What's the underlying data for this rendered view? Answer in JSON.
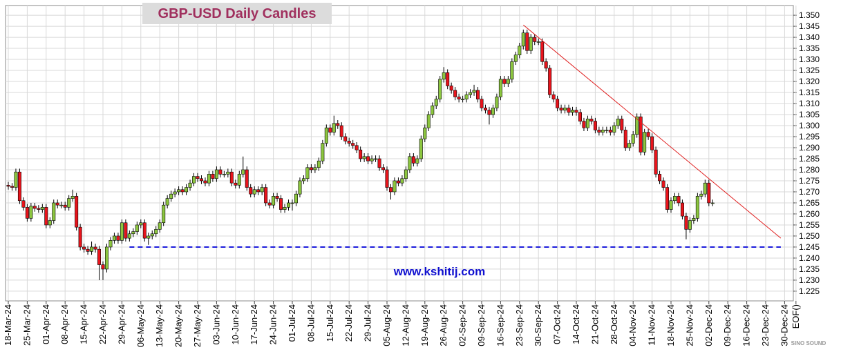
{
  "chart_data": {
    "type": "candlestick",
    "title": "GBP-USD Daily Candles",
    "annotation": "www.kshitij.com",
    "watermark": "SINO SOUND",
    "up_color": "#8cc63f",
    "down_color": "#e8141c",
    "grid": true,
    "ylim": [
      1.2206,
      1.3544
    ],
    "yticks": [
      1.225,
      {
        "value": 1.23,
        "label": "1.230"
      },
      1.235,
      {
        "value": 1.24,
        "label": "1.240"
      },
      1.245,
      {
        "value": 1.25,
        "label": "1.250"
      },
      1.255,
      {
        "value": 1.26,
        "label": "1.260"
      },
      1.265,
      {
        "value": 1.27,
        "label": "1.270"
      },
      1.275,
      {
        "value": 1.28,
        "label": "1.280"
      },
      1.285,
      {
        "value": 1.29,
        "label": "1.290"
      },
      1.295,
      {
        "value": 1.3,
        "label": "1.300"
      },
      1.305,
      {
        "value": 1.31,
        "label": "1.310"
      },
      1.315,
      {
        "value": 1.32,
        "label": "1.320"
      },
      1.325,
      {
        "value": 1.33,
        "label": "1.330"
      },
      1.335,
      {
        "value": 1.34,
        "label": "1.340"
      },
      1.345,
      {
        "value": 1.35,
        "label": "1.350"
      }
    ],
    "categories": [
      "18-Mar-24",
      null,
      null,
      null,
      null,
      "25-Mar-24",
      null,
      null,
      null,
      null,
      "01-Apr-24",
      null,
      null,
      null,
      null,
      "08-Apr-24",
      null,
      null,
      null,
      null,
      "15-Apr-24",
      null,
      null,
      null,
      null,
      "22-Apr-24",
      null,
      null,
      null,
      null,
      "29-Apr-24",
      null,
      null,
      null,
      null,
      "06-May-24",
      null,
      null,
      null,
      null,
      "13-May-24",
      null,
      null,
      null,
      null,
      "20-May-24",
      null,
      null,
      null,
      null,
      "27-May-24",
      null,
      null,
      null,
      null,
      "03-Jun-24",
      null,
      null,
      null,
      null,
      "10-Jun-24",
      null,
      null,
      null,
      null,
      "17-Jun-24",
      null,
      null,
      null,
      null,
      "24-Jun-24",
      null,
      null,
      null,
      null,
      "01-Jul-24",
      null,
      null,
      null,
      null,
      "08-Jul-24",
      null,
      null,
      null,
      null,
      "15-Jul-24",
      null,
      null,
      null,
      null,
      "22-Jul-24",
      null,
      null,
      null,
      null,
      "29-Jul-24",
      null,
      null,
      null,
      null,
      "05-Aug-24",
      null,
      null,
      null,
      null,
      "12-Aug-24",
      null,
      null,
      null,
      null,
      "19-Aug-24",
      null,
      null,
      null,
      null,
      "26-Aug-24",
      null,
      null,
      null,
      null,
      "02-Sep-24",
      null,
      null,
      null,
      null,
      "09-Sep-24",
      null,
      null,
      null,
      null,
      "16-Sep-24",
      null,
      null,
      null,
      null,
      "23-Sep-24",
      null,
      null,
      null,
      null,
      "30-Sep-24",
      null,
      null,
      null,
      null,
      "07-Oct-24",
      null,
      null,
      null,
      null,
      "14-Oct-24",
      null,
      null,
      null,
      null,
      "21-Oct-24",
      null,
      null,
      null,
      null,
      "28-Oct-24",
      null,
      null,
      null,
      null,
      "04-Nov-24",
      null,
      null,
      null,
      null,
      "11-Nov-24",
      null,
      null,
      null,
      null,
      "18-Nov-24",
      null,
      null,
      null,
      null,
      "25-Nov-24",
      null,
      null,
      null,
      null,
      "02-Dec-24",
      null,
      null,
      null,
      null,
      "09-Dec-24",
      null,
      null,
      null,
      null,
      "16-Dec-24",
      null,
      null,
      null,
      null,
      "23-Dec-24",
      null,
      null,
      null,
      null,
      "30-Dec-24",
      null,
      null,
      "EOF()",
      null
    ],
    "candles": [
      [
        1.273,
        1.2745,
        1.271,
        1.2725
      ],
      [
        1.2725,
        1.274,
        1.2705,
        1.272
      ],
      [
        1.272,
        1.2805,
        1.2705,
        1.279
      ],
      [
        1.279,
        1.2805,
        1.2645,
        1.266
      ],
      [
        1.266,
        1.2675,
        1.2615,
        1.263
      ],
      [
        1.263,
        1.2645,
        1.2565,
        1.258
      ],
      [
        1.258,
        1.265,
        1.2565,
        1.2635
      ],
      [
        1.2635,
        1.265,
        1.261,
        1.2625
      ],
      [
        1.2625,
        1.264,
        1.2605,
        1.262
      ],
      [
        1.262,
        1.2645,
        1.2605,
        1.263
      ],
      [
        1.263,
        1.2645,
        1.2535,
        1.255
      ],
      [
        1.255,
        1.2585,
        1.2535,
        1.257
      ],
      [
        1.257,
        1.2665,
        1.2555,
        1.265
      ],
      [
        1.265,
        1.2665,
        1.2625,
        1.264
      ],
      [
        1.264,
        1.2655,
        1.2625,
        1.264
      ],
      [
        1.264,
        1.2655,
        1.2615,
        1.263
      ],
      [
        1.263,
        1.2685,
        1.2615,
        1.267
      ],
      [
        1.267,
        1.271,
        1.2655,
        1.268
      ],
      [
        1.268,
        1.2695,
        1.2525,
        1.254
      ],
      [
        1.254,
        1.2555,
        1.2435,
        1.245
      ],
      [
        1.245,
        1.2465,
        1.2425,
        1.244
      ],
      [
        1.244,
        1.2455,
        1.2415,
        1.243
      ],
      [
        1.243,
        1.2475,
        1.2415,
        1.245
      ],
      [
        1.245,
        1.2465,
        1.2425,
        1.244
      ],
      [
        1.244,
        1.2455,
        1.23,
        1.237
      ],
      [
        1.237,
        1.2385,
        1.23,
        1.235
      ],
      [
        1.235,
        1.2465,
        1.2335,
        1.245
      ],
      [
        1.245,
        1.2495,
        1.2435,
        1.248
      ],
      [
        1.248,
        1.2515,
        1.2465,
        1.25
      ],
      [
        1.25,
        1.2515,
        1.2465,
        1.248
      ],
      [
        1.248,
        1.2575,
        1.2465,
        1.256
      ],
      [
        1.256,
        1.2575,
        1.2475,
        1.249
      ],
      [
        1.249,
        1.2525,
        1.2475,
        1.251
      ],
      [
        1.251,
        1.2535,
        1.2495,
        1.252
      ],
      [
        1.252,
        1.2565,
        1.2505,
        1.255
      ],
      [
        1.255,
        1.2575,
        1.2535,
        1.256
      ],
      [
        1.256,
        1.2575,
        1.2475,
        1.249
      ],
      [
        1.249,
        1.2515,
        1.246,
        1.25
      ],
      [
        1.25,
        1.2525,
        1.2485,
        1.251
      ],
      [
        1.251,
        1.2545,
        1.2495,
        1.253
      ],
      [
        1.253,
        1.2575,
        1.2515,
        1.256
      ],
      [
        1.256,
        1.2655,
        1.2545,
        1.264
      ],
      [
        1.264,
        1.2685,
        1.2625,
        1.267
      ],
      [
        1.267,
        1.2705,
        1.2655,
        1.269
      ],
      [
        1.269,
        1.2715,
        1.2675,
        1.27
      ],
      [
        1.27,
        1.2725,
        1.2685,
        1.271
      ],
      [
        1.271,
        1.2725,
        1.2685,
        1.27
      ],
      [
        1.27,
        1.2735,
        1.2685,
        1.272
      ],
      [
        1.272,
        1.2755,
        1.2705,
        1.274
      ],
      [
        1.274,
        1.2785,
        1.2725,
        1.277
      ],
      [
        1.277,
        1.2785,
        1.2745,
        1.276
      ],
      [
        1.276,
        1.2775,
        1.2735,
        1.275
      ],
      [
        1.275,
        1.2765,
        1.2725,
        1.274
      ],
      [
        1.274,
        1.2795,
        1.2725,
        1.278
      ],
      [
        1.278,
        1.2795,
        1.2745,
        1.276
      ],
      [
        1.276,
        1.2815,
        1.2745,
        1.28
      ],
      [
        1.28,
        1.2815,
        1.2765,
        1.278
      ],
      [
        1.278,
        1.2795,
        1.2765,
        1.278
      ],
      [
        1.278,
        1.2805,
        1.2765,
        1.279
      ],
      [
        1.279,
        1.2805,
        1.2725,
        1.274
      ],
      [
        1.274,
        1.2755,
        1.2715,
        1.273
      ],
      [
        1.273,
        1.2795,
        1.2715,
        1.278
      ],
      [
        1.278,
        1.286,
        1.2765,
        1.28
      ],
      [
        1.28,
        1.2815,
        1.2705,
        1.272
      ],
      [
        1.272,
        1.2735,
        1.2675,
        1.269
      ],
      [
        1.269,
        1.2725,
        1.2675,
        1.271
      ],
      [
        1.271,
        1.2725,
        1.2685,
        1.27
      ],
      [
        1.27,
        1.2735,
        1.2685,
        1.272
      ],
      [
        1.272,
        1.2735,
        1.2635,
        1.265
      ],
      [
        1.265,
        1.2665,
        1.2625,
        1.264
      ],
      [
        1.264,
        1.2695,
        1.2625,
        1.268
      ],
      [
        1.268,
        1.2695,
        1.2655,
        1.267
      ],
      [
        1.267,
        1.2685,
        1.2605,
        1.262
      ],
      [
        1.262,
        1.2645,
        1.2605,
        1.263
      ],
      [
        1.263,
        1.2665,
        1.2615,
        1.265
      ],
      [
        1.265,
        1.2665,
        1.2615,
        1.265
      ],
      [
        1.265,
        1.2705,
        1.2635,
        1.269
      ],
      [
        1.269,
        1.2765,
        1.2675,
        1.275
      ],
      [
        1.275,
        1.2775,
        1.2735,
        1.276
      ],
      [
        1.276,
        1.2825,
        1.2745,
        1.281
      ],
      [
        1.281,
        1.2825,
        1.2785,
        1.28
      ],
      [
        1.28,
        1.2825,
        1.2785,
        1.281
      ],
      [
        1.281,
        1.2855,
        1.2795,
        1.284
      ],
      [
        1.284,
        1.2935,
        1.2825,
        1.292
      ],
      [
        1.292,
        1.3005,
        1.2905,
        1.299
      ],
      [
        1.299,
        1.3005,
        1.2955,
        1.297
      ],
      [
        1.297,
        1.3045,
        1.2955,
        1.301
      ],
      [
        1.301,
        1.3025,
        1.2985,
        1.3
      ],
      [
        1.3,
        1.3015,
        1.2935,
        1.295
      ],
      [
        1.295,
        1.2965,
        1.2915,
        1.293
      ],
      [
        1.293,
        1.2945,
        1.2905,
        1.292
      ],
      [
        1.292,
        1.2935,
        1.2895,
        1.291
      ],
      [
        1.291,
        1.2925,
        1.2875,
        1.289
      ],
      [
        1.289,
        1.2905,
        1.2835,
        1.285
      ],
      [
        1.285,
        1.2875,
        1.2835,
        1.286
      ],
      [
        1.286,
        1.2875,
        1.2825,
        1.284
      ],
      [
        1.284,
        1.2865,
        1.2825,
        1.285
      ],
      [
        1.285,
        1.2865,
        1.2835,
        1.285
      ],
      [
        1.285,
        1.2865,
        1.2795,
        1.281
      ],
      [
        1.281,
        1.2825,
        1.2785,
        1.28
      ],
      [
        1.28,
        1.2815,
        1.2705,
        1.272
      ],
      [
        1.272,
        1.2735,
        1.2665,
        1.27
      ],
      [
        1.27,
        1.2765,
        1.2685,
        1.275
      ],
      [
        1.275,
        1.2765,
        1.2725,
        1.274
      ],
      [
        1.274,
        1.2775,
        1.2725,
        1.276
      ],
      [
        1.276,
        1.2815,
        1.2745,
        1.28
      ],
      [
        1.28,
        1.2875,
        1.2785,
        1.286
      ],
      [
        1.286,
        1.2875,
        1.2815,
        1.283
      ],
      [
        1.283,
        1.2865,
        1.2815,
        1.285
      ],
      [
        1.285,
        1.2955,
        1.2835,
        1.294
      ],
      [
        1.294,
        1.3005,
        1.2925,
        1.299
      ],
      [
        1.299,
        1.3065,
        1.2975,
        1.305
      ],
      [
        1.305,
        1.3105,
        1.3035,
        1.309
      ],
      [
        1.309,
        1.3135,
        1.3075,
        1.312
      ],
      [
        1.312,
        1.3225,
        1.3105,
        1.321
      ],
      [
        1.321,
        1.3265,
        1.3195,
        1.324
      ],
      [
        1.324,
        1.3255,
        1.3165,
        1.318
      ],
      [
        1.318,
        1.3195,
        1.3145,
        1.316
      ],
      [
        1.316,
        1.3175,
        1.3115,
        1.313
      ],
      [
        1.313,
        1.3145,
        1.3105,
        1.312
      ],
      [
        1.312,
        1.3135,
        1.3105,
        1.312
      ],
      [
        1.312,
        1.3155,
        1.3105,
        1.314
      ],
      [
        1.314,
        1.3165,
        1.3125,
        1.315
      ],
      [
        1.315,
        1.3185,
        1.3135,
        1.316
      ],
      [
        1.316,
        1.3175,
        1.3105,
        1.312
      ],
      [
        1.312,
        1.3135,
        1.3065,
        1.308
      ],
      [
        1.308,
        1.3095,
        1.3055,
        1.307
      ],
      [
        1.307,
        1.3085,
        1.3005,
        1.305
      ],
      [
        1.305,
        1.3095,
        1.3035,
        1.308
      ],
      [
        1.308,
        1.3145,
        1.3065,
        1.313
      ],
      [
        1.313,
        1.3225,
        1.3115,
        1.321
      ],
      [
        1.321,
        1.3225,
        1.3175,
        1.319
      ],
      [
        1.319,
        1.3225,
        1.3175,
        1.321
      ],
      [
        1.321,
        1.3305,
        1.3195,
        1.329
      ],
      [
        1.329,
        1.3335,
        1.3275,
        1.332
      ],
      [
        1.332,
        1.3375,
        1.3305,
        1.336
      ],
      [
        1.336,
        1.3435,
        1.3345,
        1.342
      ],
      [
        1.342,
        1.3435,
        1.3325,
        1.334
      ],
      [
        1.334,
        1.3415,
        1.3325,
        1.34
      ],
      [
        1.34,
        1.3415,
        1.3365,
        1.338
      ],
      [
        1.338,
        1.3395,
        1.3365,
        1.338
      ],
      [
        1.338,
        1.3395,
        1.3275,
        1.329
      ],
      [
        1.329,
        1.3305,
        1.3245,
        1.326
      ],
      [
        1.326,
        1.3275,
        1.3125,
        1.314
      ],
      [
        1.314,
        1.3155,
        1.3105,
        1.312
      ],
      [
        1.312,
        1.3135,
        1.3065,
        1.308
      ],
      [
        1.308,
        1.3095,
        1.3055,
        1.307
      ],
      [
        1.307,
        1.3095,
        1.3055,
        1.308
      ],
      [
        1.308,
        1.3095,
        1.3045,
        1.306
      ],
      [
        1.306,
        1.3085,
        1.3045,
        1.307
      ],
      [
        1.307,
        1.3085,
        1.3045,
        1.306
      ],
      [
        1.306,
        1.3075,
        1.3005,
        1.302
      ],
      [
        1.302,
        1.3035,
        1.2975,
        1.299
      ],
      [
        1.299,
        1.3045,
        1.2975,
        1.303
      ],
      [
        1.303,
        1.3045,
        1.3005,
        1.302
      ],
      [
        1.302,
        1.3035,
        1.2965,
        1.298
      ],
      [
        1.298,
        1.2995,
        1.2955,
        1.297
      ],
      [
        1.297,
        1.2995,
        1.2955,
        1.298
      ],
      [
        1.298,
        1.2995,
        1.2965,
        1.298
      ],
      [
        1.298,
        1.2995,
        1.2955,
        1.297
      ],
      [
        1.297,
        1.3015,
        1.2955,
        1.3
      ],
      [
        1.3,
        1.3045,
        1.2985,
        1.303
      ],
      [
        1.303,
        1.3045,
        1.2965,
        1.298
      ],
      [
        1.298,
        1.2995,
        1.2885,
        1.29
      ],
      [
        1.29,
        1.2935,
        1.2885,
        1.292
      ],
      [
        1.292,
        1.2975,
        1.2905,
        1.296
      ],
      [
        1.296,
        1.3055,
        1.2945,
        1.304
      ],
      [
        1.304,
        1.3055,
        1.2865,
        1.288
      ],
      [
        1.288,
        1.2985,
        1.2865,
        1.297
      ],
      [
        1.297,
        1.2985,
        1.2935,
        1.295
      ],
      [
        1.295,
        1.2965,
        1.2875,
        1.289
      ],
      [
        1.289,
        1.2905,
        1.2765,
        1.278
      ],
      [
        1.278,
        1.2795,
        1.2735,
        1.275
      ],
      [
        1.275,
        1.2765,
        1.2705,
        1.272
      ],
      [
        1.272,
        1.2735,
        1.2605,
        1.262
      ],
      [
        1.262,
        1.2675,
        1.2605,
        1.266
      ],
      [
        1.266,
        1.2695,
        1.2645,
        1.268
      ],
      [
        1.268,
        1.2695,
        1.2635,
        1.265
      ],
      [
        1.265,
        1.2665,
        1.2575,
        1.259
      ],
      [
        1.259,
        1.2605,
        1.2485,
        1.253
      ],
      [
        1.253,
        1.2585,
        1.2515,
        1.257
      ],
      [
        1.257,
        1.2595,
        1.2555,
        1.258
      ],
      [
        1.258,
        1.2695,
        1.2565,
        1.268
      ],
      [
        1.268,
        1.2705,
        1.2665,
        1.269
      ],
      [
        1.269,
        1.2755,
        1.2675,
        1.274
      ],
      [
        1.274,
        1.2755,
        1.2635,
        1.265
      ],
      [
        1.265,
        1.2665,
        1.2635,
        1.265
      ],
      null,
      null,
      null,
      null,
      null,
      null,
      null,
      null,
      null,
      null,
      null,
      null,
      null,
      null,
      null,
      null,
      null,
      null
    ],
    "trendline": {
      "x": [
        136,
        204
      ],
      "values": [
        1.3456,
        1.249
      ],
      "color": "#e02020"
    },
    "support": {
      "x": [
        32,
        204
      ],
      "value": 1.245,
      "color": "#1a1adc"
    }
  }
}
